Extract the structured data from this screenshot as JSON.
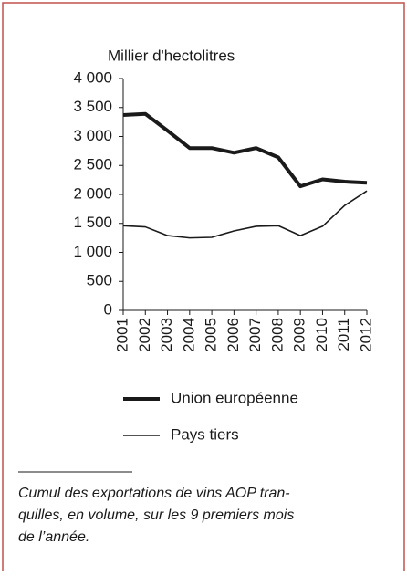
{
  "chart_data": {
    "type": "line",
    "y_label": "Millier d'hectolitres",
    "categories": [
      "2001",
      "2002",
      "2003",
      "2004",
      "2005",
      "2006",
      "2007",
      "2008",
      "2009",
      "2010",
      "2011",
      "2012"
    ],
    "series": [
      {
        "name": "Union européenne",
        "color": "#1a1a1a",
        "width": 4,
        "values": [
          3370,
          3390,
          3100,
          2800,
          2800,
          2720,
          2800,
          2640,
          2140,
          2260,
          2220,
          2200
        ]
      },
      {
        "name": "Pays tiers",
        "color": "#1a1a1a",
        "width": 1.6,
        "values": [
          1460,
          1440,
          1290,
          1250,
          1260,
          1370,
          1450,
          1460,
          1290,
          1450,
          1810,
          2060
        ]
      }
    ],
    "ylim": [
      0,
      4000
    ],
    "yticks": [
      0,
      500,
      {
        "value": 1000,
        "label": "1 000"
      },
      {
        "value": 1500,
        "label": "1 500"
      },
      {
        "value": 2000,
        "label": "2 000"
      },
      {
        "value": 2500,
        "label": "2 500"
      },
      {
        "value": 3000,
        "label": "3 000"
      },
      {
        "value": 3500,
        "label": "3 500"
      },
      {
        "value": 4000,
        "label": "4 000"
      }
    ],
    "note": [
      "Cumul des exportations de vins AOP tran-",
      "quilles, en volume, sur les 9 premiers mois",
      "de l’année."
    ]
  }
}
